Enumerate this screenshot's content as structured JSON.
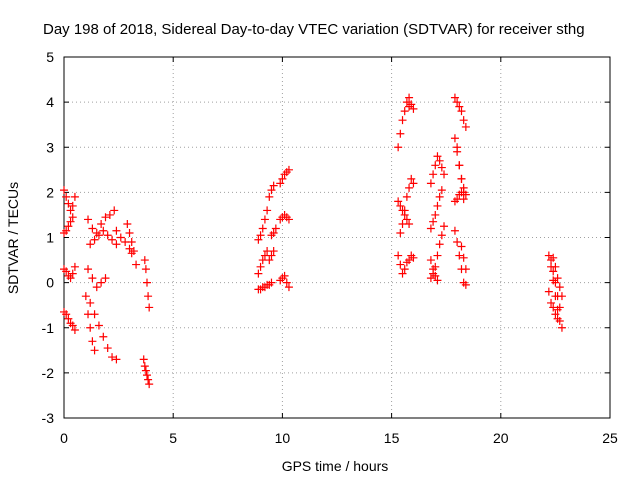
{
  "chart_data": {
    "type": "scatter",
    "title": "Day 198 of 2018, Sidereal Day-to-day VTEC variation (SDTVAR) for receiver sthg",
    "xlabel": "GPS time / hours",
    "ylabel": "SDTVAR / TECUs",
    "xlim": [
      0,
      25
    ],
    "ylim": [
      -3,
      5
    ],
    "xticks": [
      "0",
      "5",
      "10",
      "15",
      "20",
      "25"
    ],
    "yticks": [
      "-3",
      "-2",
      "-1",
      "0",
      "1",
      "2",
      "3",
      "4",
      "5"
    ],
    "grid": true,
    "marker": "plus",
    "color": "#ff0000",
    "series": [
      {
        "segments": [
          {
            "x": [
              0.0,
              0.1,
              0.2,
              0.3,
              0.4,
              0.5
            ],
            "y": [
              2.05,
              1.9,
              1.75,
              1.6,
              1.7,
              1.9
            ]
          },
          {
            "x": [
              0.0,
              0.1,
              0.2,
              0.3,
              0.4
            ],
            "y": [
              1.1,
              1.15,
              1.25,
              1.35,
              1.45
            ]
          },
          {
            "x": [
              0.0,
              0.1,
              0.2,
              0.3,
              0.4,
              0.5
            ],
            "y": [
              0.3,
              0.25,
              0.15,
              0.1,
              0.2,
              0.35
            ]
          },
          {
            "x": [
              0.0,
              0.1,
              0.2,
              0.3,
              0.4,
              0.5
            ],
            "y": [
              -0.65,
              -0.7,
              -0.8,
              -0.9,
              -0.95,
              -1.05
            ]
          },
          {
            "x": [
              1.0,
              1.2,
              1.4,
              1.6,
              1.8,
              2.0,
              2.2,
              2.4
            ],
            "y": [
              -0.3,
              -0.45,
              -0.7,
              -0.95,
              -1.2,
              -1.45,
              -1.65,
              -1.7
            ]
          },
          {
            "x": [
              1.1,
              1.2,
              1.3,
              1.4
            ],
            "y": [
              -0.7,
              -1.0,
              -1.3,
              -1.5
            ]
          },
          {
            "x": [
              1.1,
              1.3,
              1.5,
              1.7,
              1.9,
              2.1,
              2.3
            ],
            "y": [
              1.4,
              1.2,
              1.1,
              1.3,
              1.45,
              1.5,
              1.6
            ]
          },
          {
            "x": [
              1.2,
              1.4,
              1.6,
              1.8,
              2.0,
              2.2,
              2.4
            ],
            "y": [
              0.85,
              0.95,
              1.05,
              1.15,
              1.05,
              0.95,
              0.85
            ]
          },
          {
            "x": [
              1.1,
              1.3,
              1.5,
              1.7,
              1.9
            ],
            "y": [
              0.3,
              0.1,
              -0.1,
              0.0,
              0.1
            ]
          },
          {
            "x": [
              2.9,
              3.0,
              3.1,
              3.2,
              3.3
            ],
            "y": [
              1.3,
              1.1,
              0.9,
              0.7,
              0.4
            ]
          },
          {
            "x": [
              2.4,
              2.6,
              2.8,
              3.0,
              3.1
            ],
            "y": [
              1.15,
              1.0,
              0.9,
              0.75,
              0.65
            ]
          },
          {
            "x": [
              3.7,
              3.75,
              3.8,
              3.85,
              3.9
            ],
            "y": [
              0.5,
              0.3,
              0.0,
              -0.3,
              -0.55
            ]
          },
          {
            "x": [
              3.65,
              3.7,
              3.75,
              3.8,
              3.85,
              3.9
            ],
            "y": [
              -1.7,
              -1.85,
              -1.95,
              -2.05,
              -2.15,
              -2.25
            ]
          },
          {
            "x": [
              8.9,
              9.0,
              9.1,
              9.2,
              9.3
            ],
            "y": [
              0.95,
              1.05,
              1.2,
              1.4,
              1.6
            ]
          },
          {
            "x": [
              8.9,
              9.0,
              9.1,
              9.2,
              9.3
            ],
            "y": [
              0.2,
              0.35,
              0.5,
              0.6,
              0.7
            ]
          },
          {
            "x": [
              8.9,
              9.0,
              9.1,
              9.2,
              9.3,
              9.4,
              9.5
            ],
            "y": [
              -0.15,
              -0.15,
              -0.1,
              -0.1,
              -0.05,
              -0.05,
              0.0
            ]
          },
          {
            "x": [
              9.4,
              9.5,
              9.6
            ],
            "y": [
              1.9,
              2.05,
              2.15
            ]
          },
          {
            "x": [
              9.4,
              9.5,
              9.6
            ],
            "y": [
              0.5,
              0.6,
              0.7
            ]
          },
          {
            "x": [
              9.5,
              9.6,
              9.7
            ],
            "y": [
              1.05,
              1.1,
              1.2
            ]
          },
          {
            "x": [
              9.9,
              10.0,
              10.1,
              10.2,
              10.3
            ],
            "y": [
              2.2,
              2.3,
              2.4,
              2.45,
              2.5
            ]
          },
          {
            "x": [
              9.9,
              10.0,
              10.1,
              10.2,
              10.3
            ],
            "y": [
              1.4,
              1.45,
              1.5,
              1.45,
              1.4
            ]
          },
          {
            "x": [
              9.9,
              10.0,
              10.1,
              10.2,
              10.3
            ],
            "y": [
              0.05,
              0.1,
              0.15,
              0.0,
              -0.1
            ]
          },
          {
            "x": [
              15.3,
              15.4,
              15.5,
              15.6,
              15.7,
              15.8
            ],
            "y": [
              3.0,
              3.3,
              3.6,
              3.8,
              4.0,
              4.1
            ]
          },
          {
            "x": [
              15.8,
              15.9,
              16.0
            ],
            "y": [
              3.9,
              3.95,
              3.85
            ]
          },
          {
            "x": [
              15.3,
              15.4,
              15.5,
              15.6,
              15.7,
              15.8
            ],
            "y": [
              1.8,
              1.7,
              1.6,
              1.5,
              1.4,
              1.3
            ]
          },
          {
            "x": [
              15.4,
              15.5,
              15.6,
              15.7,
              15.8,
              15.9,
              16.0
            ],
            "y": [
              1.1,
              1.3,
              1.6,
              1.9,
              2.1,
              2.3,
              2.2
            ]
          },
          {
            "x": [
              15.3,
              15.4,
              15.5,
              15.6,
              15.7,
              15.8,
              15.9,
              16.0
            ],
            "y": [
              0.6,
              0.4,
              0.2,
              0.3,
              0.45,
              0.5,
              0.6,
              0.55
            ]
          },
          {
            "x": [
              16.8,
              16.9,
              17.0,
              17.1,
              17.2,
              17.3,
              17.4
            ],
            "y": [
              2.2,
              2.4,
              2.6,
              2.8,
              2.7,
              2.55,
              2.4
            ]
          },
          {
            "x": [
              16.8,
              16.9,
              17.0,
              17.1,
              17.2,
              17.3
            ],
            "y": [
              1.2,
              1.35,
              1.5,
              1.7,
              1.9,
              2.05
            ]
          },
          {
            "x": [
              16.8,
              16.9,
              17.0,
              17.1,
              17.2,
              17.3,
              17.4
            ],
            "y": [
              0.1,
              0.2,
              0.35,
              0.6,
              0.85,
              1.05,
              1.25
            ]
          },
          {
            "x": [
              16.8,
              16.9,
              17.0,
              17.1
            ],
            "y": [
              0.5,
              0.3,
              0.15,
              0.05
            ]
          },
          {
            "x": [
              17.9,
              18.0,
              18.1,
              18.2,
              18.3,
              18.4
            ],
            "y": [
              4.1,
              4.0,
              3.9,
              3.8,
              3.6,
              3.45
            ]
          },
          {
            "x": [
              17.9,
              18.0,
              18.1,
              18.2,
              18.3
            ],
            "y": [
              3.2,
              2.9,
              2.6,
              2.3,
              2.0
            ]
          },
          {
            "x": [
              18.0,
              18.1,
              18.2,
              18.3,
              18.4
            ],
            "y": [
              3.0,
              2.6,
              2.3,
              2.1,
              1.95
            ]
          },
          {
            "x": [
              17.9,
              18.0,
              18.1,
              18.2,
              18.3
            ],
            "y": [
              1.8,
              1.85,
              1.95,
              2.0,
              1.85
            ]
          },
          {
            "x": [
              17.9,
              18.0,
              18.1,
              18.2,
              18.3,
              18.4
            ],
            "y": [
              1.15,
              0.9,
              0.6,
              0.3,
              0.0,
              -0.05
            ]
          },
          {
            "x": [
              18.2,
              18.3,
              18.4
            ],
            "y": [
              0.8,
              0.55,
              0.3
            ]
          },
          {
            "x": [
              22.2,
              22.3,
              22.4,
              22.5,
              22.6,
              22.7,
              22.8
            ],
            "y": [
              0.6,
              0.35,
              0.05,
              -0.3,
              -0.6,
              -0.85,
              -1.0
            ]
          },
          {
            "x": [
              22.3,
              22.4,
              22.5,
              22.6,
              22.7
            ],
            "y": [
              0.5,
              0.25,
              0.0,
              -0.3,
              -0.55
            ]
          },
          {
            "x": [
              22.4,
              22.5,
              22.6,
              22.7,
              22.8
            ],
            "y": [
              0.55,
              0.35,
              0.1,
              -0.1,
              -0.3
            ]
          },
          {
            "x": [
              22.2,
              22.3,
              22.4,
              22.5,
              22.6
            ],
            "y": [
              -0.2,
              -0.45,
              -0.55,
              -0.7,
              -0.8
            ]
          }
        ]
      }
    ]
  }
}
